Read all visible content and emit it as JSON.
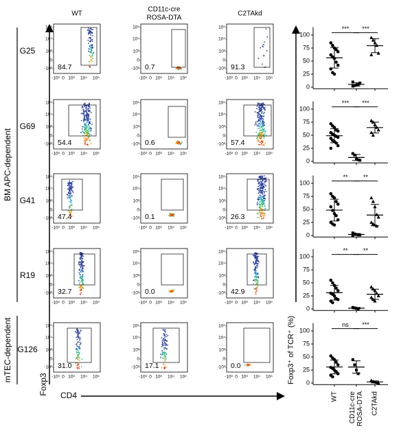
{
  "column_headers": [
    [
      "WT"
    ],
    [
      "CD11c-cre",
      "ROSA-DTA"
    ],
    [
      "C2TAkd"
    ]
  ],
  "group_labels": {
    "bm": "BM APC-dependent",
    "mtec": "mTEC-dependent"
  },
  "axis_labels": {
    "y": "Foxp3",
    "x": "CD4"
  },
  "flow_axis": {
    "yticks": [
      "10⁵",
      "10⁴",
      "10³",
      "0",
      "-10³"
    ],
    "xticks": [
      "-10³",
      "0",
      "10³",
      "10⁴",
      "10⁵"
    ]
  },
  "rows": [
    {
      "label": "G25",
      "gates": [
        "84.7",
        "0.7",
        "91.3"
      ],
      "significance": [
        "***",
        "***"
      ],
      "values": [
        [
          85,
          80,
          75,
          72,
          68,
          62,
          58,
          55,
          48,
          42,
          35,
          28,
          25
        ],
        [
          2,
          3,
          4,
          5,
          8,
          10
        ],
        [
          95,
          90,
          85,
          80,
          65,
          62
        ]
      ]
    },
    {
      "label": "G69",
      "gates": [
        "54.4",
        "0.6",
        "57.4"
      ],
      "significance": [
        "***",
        "***"
      ],
      "values": [
        [
          72,
          68,
          65,
          60,
          58,
          55,
          52,
          50,
          48,
          46,
          44,
          40,
          38,
          35,
          30,
          25
        ],
        [
          15,
          12,
          5,
          3,
          2
        ],
        [
          78,
          75,
          70,
          65,
          60,
          55,
          50
        ]
      ]
    },
    {
      "label": "G41",
      "gates": [
        "47.4",
        "0.1",
        "26.3"
      ],
      "significance": [
        "**",
        "**"
      ],
      "values": [
        [
          80,
          75,
          72,
          65,
          60,
          55,
          48,
          42,
          38,
          30,
          25,
          22,
          20
        ],
        [
          5,
          3,
          2,
          1,
          1,
          0
        ],
        [
          72,
          65,
          55,
          40,
          35,
          25,
          22,
          20,
          18
        ]
      ]
    },
    {
      "label": "R19",
      "gates": [
        "32.7",
        "0.0",
        "42.9"
      ],
      "significance": [
        "**",
        "**"
      ],
      "values": [
        [
          55,
          50,
          45,
          40,
          35,
          30,
          28,
          25,
          20,
          18,
          15,
          12
        ],
        [
          3,
          2,
          1,
          0
        ],
        [
          42,
          38,
          35,
          30,
          25,
          22,
          18,
          15
        ]
      ]
    },
    {
      "label": "G126",
      "gates": [
        "31.0",
        "17.1",
        "0.0"
      ],
      "significance": [
        "ns",
        "***"
      ],
      "values": [
        [
          52,
          48,
          45,
          40,
          35,
          30,
          28,
          25,
          22,
          18,
          15,
          12
        ],
        [
          45,
          35,
          25,
          18
        ],
        [
          5,
          3,
          2,
          1,
          0
        ]
      ]
    }
  ],
  "dot_plot": {
    "y_label": "Foxp3⁺ of TCR⁺ (%)",
    "ylim": [
      -3,
      115
    ],
    "yticks": [
      0,
      25,
      50,
      75,
      100
    ],
    "categories": [
      [
        "WT"
      ],
      [
        "CD11c-cre",
        "ROSA-DTA"
      ],
      [
        "C2TAkd"
      ]
    ]
  }
}
